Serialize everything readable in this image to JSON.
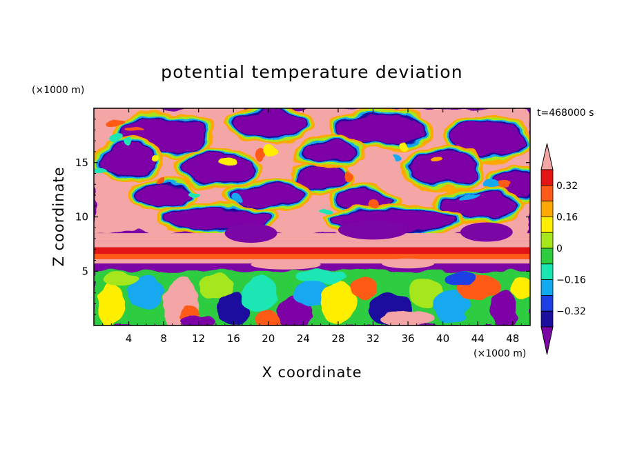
{
  "chart_data": {
    "type": "heatmap",
    "title": "potential temperature deviation",
    "xlabel": "X coordinate",
    "ylabel": "Z coordinate",
    "x_unit": "(×1000 m)",
    "y_unit": "(×1000 m)",
    "time_label": "t=468000 s",
    "xlim": [
      0,
      50
    ],
    "ylim": [
      0,
      20
    ],
    "x_ticks": [
      "4",
      "8",
      "12",
      "16",
      "20",
      "24",
      "28",
      "32",
      "36",
      "40",
      "44",
      "48"
    ],
    "y_ticks": [
      "5",
      "10",
      "15"
    ],
    "colorbar": {
      "levels": [
        -0.4,
        -0.32,
        -0.24,
        -0.16,
        -0.08,
        0,
        0.08,
        0.16,
        0.24,
        0.32,
        0.4
      ],
      "tick_labels": [
        "0.32",
        "0.16",
        "0",
        "−0.16",
        "−0.32"
      ],
      "colors": [
        "#7b05a5",
        "#1a0f9e",
        "#1c3fe3",
        "#12a9f0",
        "#1ae6b4",
        "#2ecc3f",
        "#a6e61c",
        "#ffee00",
        "#ffa800",
        "#ff5a18",
        "#e31414",
        "#f4a6a6"
      ],
      "extend": "both"
    },
    "layers": [
      {
        "z_range": [
          15.5,
          20
        ],
        "description": "alternating warm (pink) and cold (purple) patches",
        "dominant": [
          "#f4a6a6",
          "#7b05a5"
        ]
      },
      {
        "z_range": [
          10,
          15.5
        ],
        "description": "mixed warm/cold cells with sharp gradients",
        "dominant": [
          "#f4a6a6",
          "#7b05a5"
        ]
      },
      {
        "z_range": [
          6,
          10
        ],
        "description": "warm layer over thin red-orange band",
        "dominant": [
          "#f4a6a6",
          "#e31414",
          "#ff5a18"
        ]
      },
      {
        "z_range": [
          5,
          6
        ],
        "description": "cold band",
        "dominant": [
          "#7b05a5"
        ]
      },
      {
        "z_range": [
          0,
          5
        ],
        "description": "near-neutral boundary layer with small fluctuations",
        "dominant": [
          "#2ecc3f",
          "#a6e61c",
          "#12a9f0",
          "#ffee00"
        ]
      }
    ]
  }
}
